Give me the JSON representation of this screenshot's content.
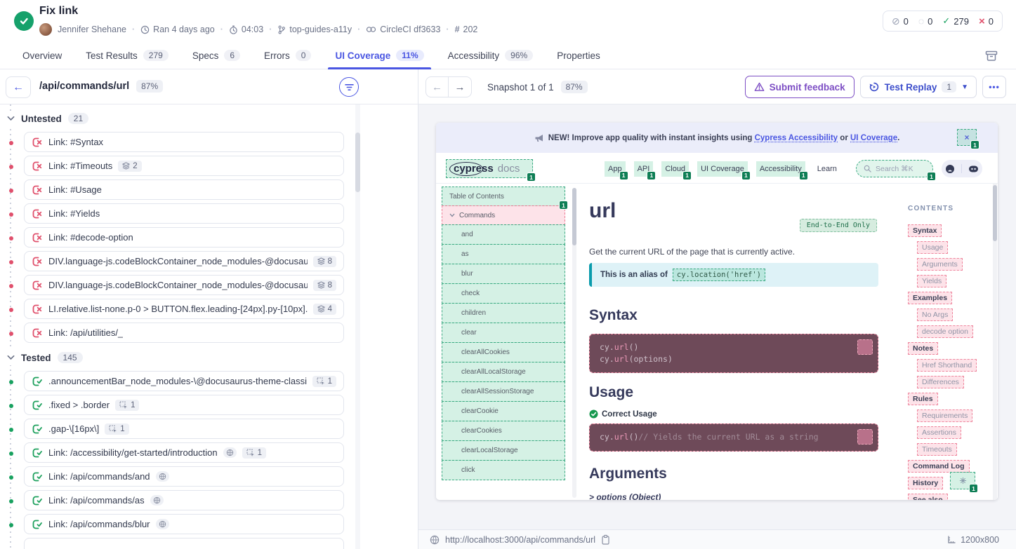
{
  "app": {
    "title": "Fix link",
    "author": "Jennifer Shehane",
    "ran": "Ran 4 days ago",
    "duration": "04:03",
    "branch": "top-guides-a11y",
    "ci": "CircleCI df3633",
    "build_number": "202",
    "counts": {
      "skipped": "0",
      "pending": "0",
      "passed": "279",
      "failed": "0"
    }
  },
  "tabs": [
    {
      "label": "Overview"
    },
    {
      "label": "Test Results",
      "badge": "279"
    },
    {
      "label": "Specs",
      "badge": "6"
    },
    {
      "label": "Errors",
      "badge": "0"
    },
    {
      "label": "UI Coverage",
      "badge": "11%",
      "active": true
    },
    {
      "label": "Accessibility",
      "badge": "96%"
    },
    {
      "label": "Properties"
    }
  ],
  "left": {
    "view_title": "/api/commands/url",
    "view_score": "87%",
    "sections": [
      {
        "label": "Untested",
        "count": "21",
        "state": "untested",
        "items": [
          {
            "label": "Link: #Syntax"
          },
          {
            "label": "Link: #Timeouts",
            "layers": "2"
          },
          {
            "label": "Link: #Usage"
          },
          {
            "label": "Link: #Yields"
          },
          {
            "label": "Link: #decode-option"
          },
          {
            "label": "DIV.language-js.codeBlockContainer_node_modules-@docusaur...",
            "layers": "8"
          },
          {
            "label": "DIV.language-js.codeBlockContainer_node_modules-@docusaur...",
            "layers": "8"
          },
          {
            "label": "LI.relative.list-none.p-0 > BUTTON.flex.leading-[24px].py-[10px]....",
            "layers": "4"
          },
          {
            "label": "Link: /api/utilities/_"
          }
        ]
      },
      {
        "label": "Tested",
        "count": "145",
        "state": "tested",
        "items": [
          {
            "label": ".announcementBar_node_modules-\\@docusaurus-theme-classic-...",
            "clicks": "1"
          },
          {
            "label": ".fixed > .border",
            "clicks": "1"
          },
          {
            "label": ".gap-\\[16px\\]",
            "clicks": "1"
          },
          {
            "label": "Link: /accessibility/get-started/introduction",
            "globe": true,
            "clicks": "1"
          },
          {
            "label": "Link: /api/commands/and",
            "globe": true
          },
          {
            "label": "Link: /api/commands/as",
            "globe": true
          },
          {
            "label": "Link: /api/commands/blur",
            "globe": true
          },
          {
            "label": "",
            "partial": true
          }
        ]
      }
    ]
  },
  "viewer": {
    "snapshot_label": "Snapshot 1 of 1",
    "score": "87%",
    "feedback_label": "Submit feedback",
    "replay_label": "Test Replay",
    "replay_count": "1",
    "url": "http://localhost:3000/api/commands/url",
    "viewport": "1200x800"
  },
  "snapshot": {
    "banner": {
      "prefix": "NEW! Improve app quality with instant insights using",
      "link1": "Cypress Accessibility",
      "conj": "or",
      "link2": "UI Coverage",
      "suffix": ".",
      "close": "×",
      "close_badge": "1"
    },
    "nav": {
      "logo": "cypress",
      "logo_suffix": "docs",
      "logo_badge": "1",
      "items": [
        {
          "label": "App",
          "badge": "1"
        },
        {
          "label": "API",
          "badge": "1"
        },
        {
          "label": "Cloud",
          "badge": "1"
        },
        {
          "label": "UI Coverage",
          "badge": "1"
        },
        {
          "label": "Accessibility",
          "badge": "1"
        },
        {
          "label": "Learn"
        }
      ],
      "search_placeholder": "Search ⌘K",
      "search_badge": "1"
    },
    "sidebar": {
      "toc_label": "Table of Contents",
      "toc_badge": "1",
      "group_label": "Commands",
      "items": [
        "and",
        "as",
        "blur",
        "check",
        "children",
        "clear",
        "clearAllCookies",
        "clearAllLocalStorage",
        "clearAllSessionStorage",
        "clearCookie",
        "clearCookies",
        "clearLocalStorage",
        "click"
      ]
    },
    "main": {
      "title": "url",
      "pill": "End-to-End Only",
      "desc": "Get the current URL of the page that is currently active.",
      "alias_prefix": "This is an alias of",
      "alias_code": "cy.location('href')",
      "h_syntax": "Syntax",
      "code1_line1": "cy.url()",
      "code1_line2": "cy.url(options)",
      "h_usage": "Usage",
      "correct_label": "Correct Usage",
      "code2_line": "cy.url()// Yields the current URL as a string",
      "h_args": "Arguments",
      "args_line": "> options (Object)"
    },
    "contents": {
      "label": "CONTENTS",
      "items": [
        {
          "label": "Syntax",
          "level": 0
        },
        {
          "label": "Usage",
          "level": 1
        },
        {
          "label": "Arguments",
          "level": 1
        },
        {
          "label": "Yields",
          "level": 1
        },
        {
          "label": "Examples",
          "level": 0
        },
        {
          "label": "No Args",
          "level": 1
        },
        {
          "label": "decode option",
          "level": 1
        },
        {
          "label": "Notes",
          "level": 0
        },
        {
          "label": "Href Shorthand",
          "level": 1
        },
        {
          "label": "Differences",
          "level": 1
        },
        {
          "label": "Rules",
          "level": 0
        },
        {
          "label": "Requirements",
          "level": 1
        },
        {
          "label": "Assertions",
          "level": 1
        },
        {
          "label": "Timeouts",
          "level": 1
        },
        {
          "label": "Command Log",
          "level": 0
        },
        {
          "label": "History",
          "level": 0,
          "highlight_badge": "1"
        },
        {
          "label": "See also",
          "level": 0
        }
      ]
    }
  },
  "colors": {
    "accent_indigo": "#4a56e2",
    "pass_green": "#18a15f",
    "fail_red": "#e0506c",
    "purple": "#7d4ec4",
    "tested_highlight": "#3aa981",
    "untested_highlight": "#ed7c95",
    "badge_green": "#0e7e55"
  }
}
